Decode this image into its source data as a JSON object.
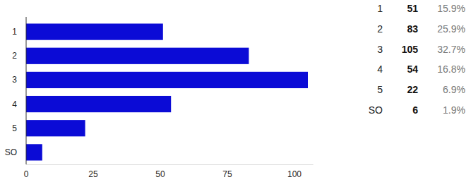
{
  "chart_data": {
    "type": "bar",
    "orientation": "horizontal",
    "categories": [
      "1",
      "2",
      "3",
      "4",
      "5",
      "SO"
    ],
    "values": [
      51,
      83,
      105,
      54,
      22,
      6
    ],
    "color": "#0b0bd6",
    "xlim": [
      0,
      107
    ],
    "xticks": [
      0,
      25,
      50,
      75,
      100
    ],
    "grid": false,
    "data_labels": false
  },
  "table": {
    "percents": [
      "15.9%",
      "25.9%",
      "32.7%",
      "16.8%",
      "6.9%",
      "1.9%"
    ]
  }
}
